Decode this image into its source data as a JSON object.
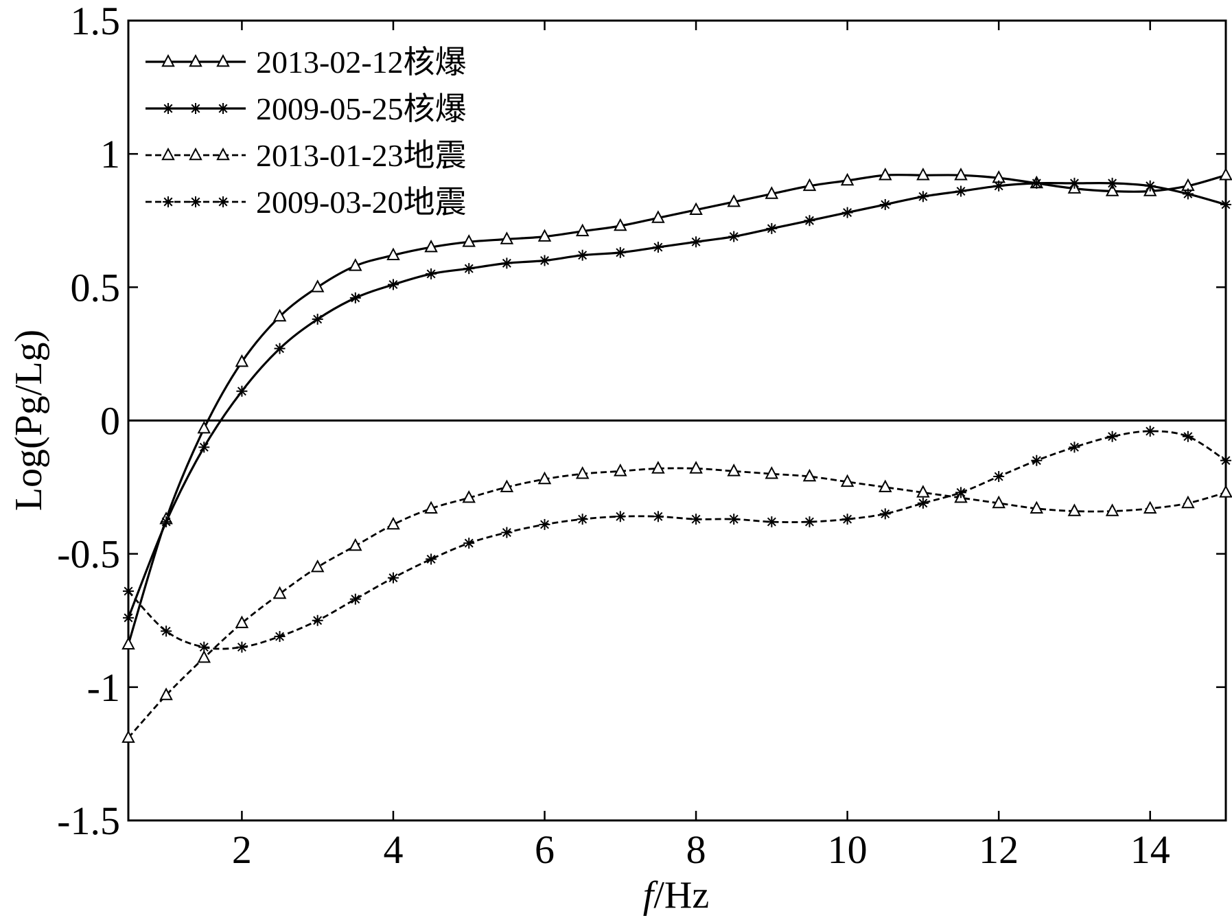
{
  "chart_data": {
    "type": "line",
    "title": "",
    "xlabel_italic": "f",
    "xlabel_rest": "/Hz",
    "ylabel": "Log(Pg/Lg)",
    "xlim": [
      0.5,
      15
    ],
    "ylim": [
      -1.5,
      1.5
    ],
    "xticks": [
      2,
      4,
      6,
      8,
      10,
      12,
      14
    ],
    "yticks": [
      1.5,
      1,
      0.5,
      0,
      -0.5,
      -1,
      -1.5
    ],
    "ytick_labels": [
      "1.5",
      "1",
      "0.5",
      "0",
      "-0.5",
      "-1",
      "-1.5"
    ],
    "grid": false,
    "zero_line": true,
    "legend_position": "top-left",
    "x": [
      0.5,
      1,
      1.5,
      2,
      2.5,
      3,
      3.5,
      4,
      4.5,
      5,
      5.5,
      6,
      6.5,
      7,
      7.5,
      8,
      8.5,
      9,
      9.5,
      10,
      10.5,
      11,
      11.5,
      12,
      12.5,
      13,
      13.5,
      14,
      14.5,
      15
    ],
    "series": [
      {
        "name": "2013-02-12核爆",
        "line": "solid",
        "marker": "triangle",
        "values": [
          -0.84,
          -0.37,
          -0.03,
          0.22,
          0.39,
          0.5,
          0.58,
          0.62,
          0.65,
          0.67,
          0.68,
          0.69,
          0.71,
          0.73,
          0.76,
          0.79,
          0.82,
          0.85,
          0.88,
          0.9,
          0.92,
          0.92,
          0.92,
          0.91,
          0.89,
          0.87,
          0.86,
          0.86,
          0.88,
          0.92
        ]
      },
      {
        "name": "2009-05-25核爆",
        "line": "solid",
        "marker": "star",
        "values": [
          -0.74,
          -0.38,
          -0.1,
          0.11,
          0.27,
          0.38,
          0.46,
          0.51,
          0.55,
          0.57,
          0.59,
          0.6,
          0.62,
          0.63,
          0.65,
          0.67,
          0.69,
          0.72,
          0.75,
          0.78,
          0.81,
          0.84,
          0.86,
          0.88,
          0.89,
          0.89,
          0.89,
          0.88,
          0.85,
          0.81
        ]
      },
      {
        "name": "2013-01-23地震",
        "line": "dashed",
        "marker": "triangle",
        "values": [
          -1.19,
          -1.03,
          -0.89,
          -0.76,
          -0.65,
          -0.55,
          -0.47,
          -0.39,
          -0.33,
          -0.29,
          -0.25,
          -0.22,
          -0.2,
          -0.19,
          -0.18,
          -0.18,
          -0.19,
          -0.2,
          -0.21,
          -0.23,
          -0.25,
          -0.27,
          -0.29,
          -0.31,
          -0.33,
          -0.34,
          -0.34,
          -0.33,
          -0.31,
          -0.27
        ]
      },
      {
        "name": "2009-03-20地震",
        "line": "dashed",
        "marker": "star",
        "values": [
          -0.64,
          -0.79,
          -0.85,
          -0.85,
          -0.81,
          -0.75,
          -0.67,
          -0.59,
          -0.52,
          -0.46,
          -0.42,
          -0.39,
          -0.37,
          -0.36,
          -0.36,
          -0.37,
          -0.37,
          -0.38,
          -0.38,
          -0.37,
          -0.35,
          -0.31,
          -0.27,
          -0.21,
          -0.15,
          -0.1,
          -0.06,
          -0.04,
          -0.06,
          -0.15
        ]
      }
    ],
    "colors": {
      "line": "#000000",
      "background": "#ffffff"
    }
  }
}
